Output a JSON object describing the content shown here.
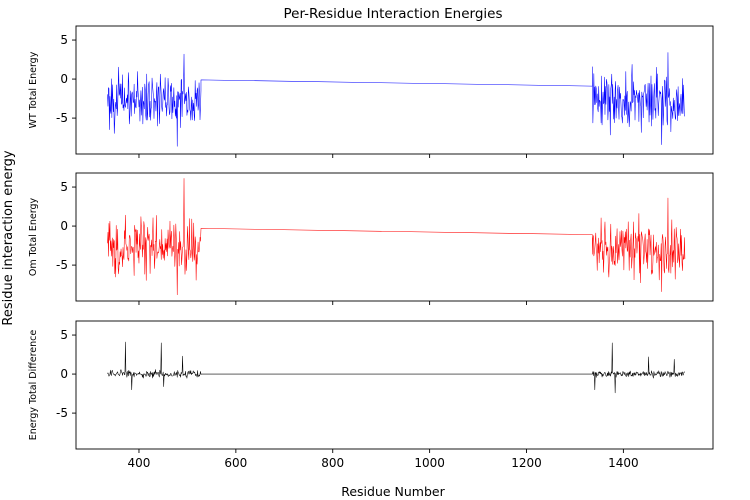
{
  "chart_data": {
    "type": "line",
    "title": "Per-Residue Interaction Energies",
    "xlabel": "Residue Number",
    "ylabel": "Residue interaction energy",
    "xlim": [
      270,
      1585
    ],
    "ylim": [
      -9.6,
      6.8
    ],
    "x_ticks": [
      400,
      600,
      800,
      1000,
      1200,
      1400
    ],
    "y_ticks": [
      -5,
      0,
      5
    ],
    "grid": false,
    "sharex": true,
    "panels": [
      {
        "id": "wt",
        "ylabel": "WT Total Energy",
        "color": "#0000ff",
        "segments": [
          {
            "x_start": 335,
            "x_end": 528,
            "mean": -2.6,
            "spread": 3.2,
            "max": 3.2,
            "min": -8.6
          },
          {
            "x_start": 528,
            "x_end": 1336,
            "y_start": -0.1,
            "y_end": -0.9
          },
          {
            "x_start": 1336,
            "x_end": 1527,
            "mean": -2.7,
            "spread": 3.3,
            "max": 3.4,
            "min": -8.4
          }
        ]
      },
      {
        "id": "om",
        "ylabel": "Om Total Energy",
        "color": "#ff0000",
        "segments": [
          {
            "x_start": 335,
            "x_end": 528,
            "mean": -2.7,
            "spread": 3.2,
            "max": 6.1,
            "min": -8.8
          },
          {
            "x_start": 528,
            "x_end": 1336,
            "y_start": -0.3,
            "y_end": -1.1
          },
          {
            "x_start": 1336,
            "x_end": 1527,
            "mean": -2.8,
            "spread": 3.2,
            "max": 3.6,
            "min": -8.4
          }
        ]
      },
      {
        "id": "diff",
        "ylabel": "Energy Total Difference",
        "color": "#000000",
        "segments": [
          {
            "x_start": 335,
            "x_end": 528,
            "mean": 0.0,
            "spread": 0.4,
            "max": 4.1,
            "min": -2.0,
            "spikes": [
              [
                372,
                4.1
              ],
              [
                385,
                -2.0
              ],
              [
                446,
                4.0
              ],
              [
                451,
                -1.6
              ],
              [
                490,
                2.3
              ]
            ]
          },
          {
            "x_start": 528,
            "x_end": 1336,
            "y_start": 0.0,
            "y_end": 0.0
          },
          {
            "x_start": 1336,
            "x_end": 1527,
            "mean": 0.0,
            "spread": 0.4,
            "max": 4.0,
            "min": -2.4,
            "spikes": [
              [
                1341,
                -2.0
              ],
              [
                1377,
                4.0
              ],
              [
                1383,
                -2.4
              ],
              [
                1452,
                2.2
              ],
              [
                1505,
                1.9
              ]
            ]
          }
        ]
      }
    ]
  }
}
